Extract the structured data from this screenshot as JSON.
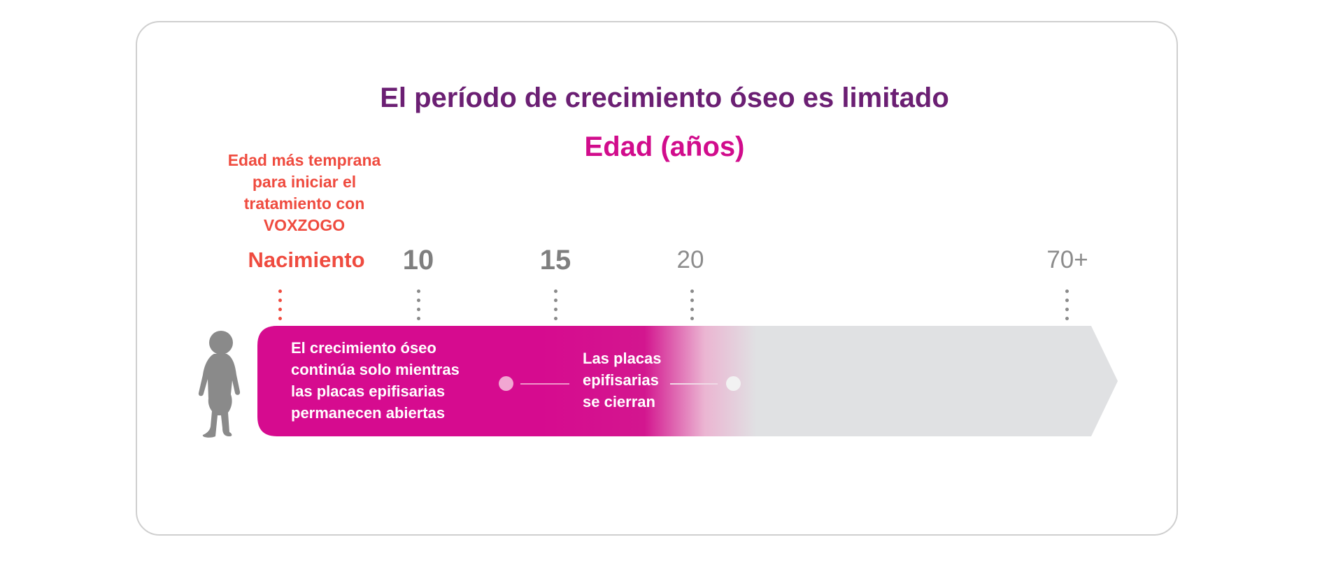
{
  "title": "El período de crecimiento óseo es limitado",
  "axis_title": "Edad (años)",
  "start_note": [
    "Edad más temprana",
    "para iniciar el",
    "tratamiento con",
    "VOXZOGO"
  ],
  "ticks": [
    {
      "label": "Nacimiento",
      "style": "birth"
    },
    {
      "label": "10",
      "style": "bold"
    },
    {
      "label": "15",
      "style": "bold"
    },
    {
      "label": "20",
      "style": "light"
    },
    {
      "label": "70+",
      "style": "light"
    }
  ],
  "bar_growth_text": [
    "El crecimiento óseo",
    "continúa solo mientras",
    "las placas epifisarias",
    "permanecen abiertas"
  ],
  "bar_close_text": [
    "Las placas",
    "epifisarias",
    "se cierran"
  ],
  "colors": {
    "title": "#6b1f73",
    "axis_title": "#d10c8c",
    "note": "#ef4b3f",
    "bar_magenta": "#d60b8f",
    "bar_grey": "#e0e1e3",
    "tick_grey": "#8a8a8a",
    "child_silhouette": "#8a8a8a"
  },
  "icons": [
    "child-silhouette-icon"
  ]
}
